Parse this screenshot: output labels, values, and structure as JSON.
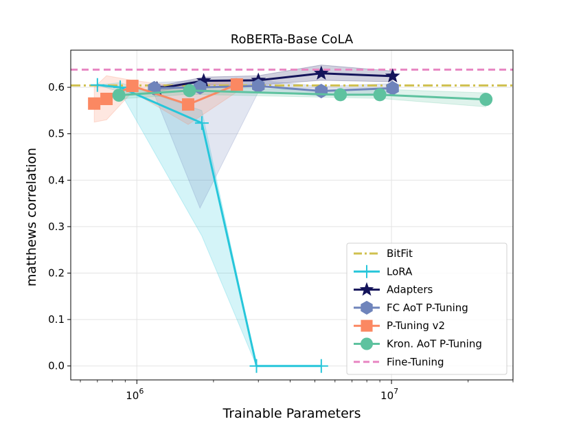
{
  "chart_data": {
    "type": "line",
    "title": "RoBERTa-Base CoLA",
    "xlabel": "Trainable Parameters",
    "ylabel": "matthews correlation",
    "xscale": "log",
    "xlim": [
      550000,
      30000000
    ],
    "ylim": [
      -0.03,
      0.68
    ],
    "x_ticks": [
      {
        "value": 1000000,
        "base": "10",
        "exp": "6"
      },
      {
        "value": 10000000,
        "base": "10",
        "exp": "7"
      }
    ],
    "y_ticks": [
      {
        "value": 0.0,
        "label": "0.0"
      },
      {
        "value": 0.1,
        "label": "0.1"
      },
      {
        "value": 0.2,
        "label": "0.2"
      },
      {
        "value": 0.3,
        "label": "0.3"
      },
      {
        "value": 0.4,
        "label": "0.4"
      },
      {
        "value": 0.5,
        "label": "0.5"
      },
      {
        "value": 0.6,
        "label": "0.6"
      }
    ],
    "grid": true,
    "legend_position": "lower-right",
    "hlines": [
      {
        "name": "BitFit",
        "y": 0.604,
        "color": "#cfc04e",
        "style": "dashdot"
      },
      {
        "name": "Fine-Tuning",
        "y": 0.638,
        "color": "#e886c2",
        "style": "dashed"
      }
    ],
    "series": [
      {
        "name": "LoRA",
        "color": "#26c6da",
        "marker": "plus",
        "x": [
          700000,
          860000,
          1800000,
          2950000,
          5300000
        ],
        "y": [
          0.605,
          0.6,
          0.523,
          0.0,
          0.0
        ],
        "lower": [
          0.605,
          0.59,
          0.28,
          0.0,
          0.0
        ],
        "upper": [
          0.605,
          0.61,
          0.55,
          0.0,
          0.0
        ]
      },
      {
        "name": "Adapters",
        "color": "#14145a",
        "marker": "star",
        "x": [
          1200000,
          1830000,
          3000000,
          5300000,
          10100000
        ],
        "y": [
          0.597,
          0.614,
          0.615,
          0.63,
          0.624
        ],
        "lower": [
          0.592,
          0.605,
          0.605,
          0.615,
          0.612
        ],
        "upper": [
          0.602,
          0.622,
          0.625,
          0.648,
          0.635
        ]
      },
      {
        "name": "FC AoT P-Tuning",
        "color": "#6f84bb",
        "marker": "hexagon",
        "x": [
          1170000,
          1770000,
          3000000,
          5300000,
          10100000
        ],
        "y": [
          0.598,
          0.6,
          0.603,
          0.592,
          0.598
        ],
        "lower": [
          0.585,
          0.34,
          0.59,
          0.582,
          0.588
        ],
        "upper": [
          0.61,
          0.615,
          0.615,
          0.602,
          0.608
        ]
      },
      {
        "name": "P-Tuning v2",
        "color": "#fb8862",
        "marker": "square",
        "x": [
          680000,
          760000,
          960000,
          1590000,
          2470000
        ],
        "y": [
          0.565,
          0.575,
          0.603,
          0.563,
          0.606
        ],
        "lower": [
          0.525,
          0.53,
          0.59,
          0.52,
          0.59
        ],
        "upper": [
          0.6,
          0.625,
          0.615,
          0.6,
          0.62
        ]
      },
      {
        "name": "Kron. AoT P-Tuning",
        "color": "#5ec29f",
        "marker": "circle",
        "x": [
          850000,
          1610000,
          6300000,
          9000000,
          23500000
        ],
        "y": [
          0.583,
          0.593,
          0.584,
          0.584,
          0.574
        ],
        "lower": [
          0.575,
          0.585,
          0.578,
          0.576,
          0.558
        ],
        "upper": [
          0.592,
          0.602,
          0.592,
          0.596,
          0.588
        ]
      }
    ],
    "legend": [
      "BitFit",
      "LoRA",
      "Adapters",
      "FC AoT P-Tuning",
      "P-Tuning v2",
      "Kron. AoT P-Tuning",
      "Fine-Tuning"
    ]
  }
}
